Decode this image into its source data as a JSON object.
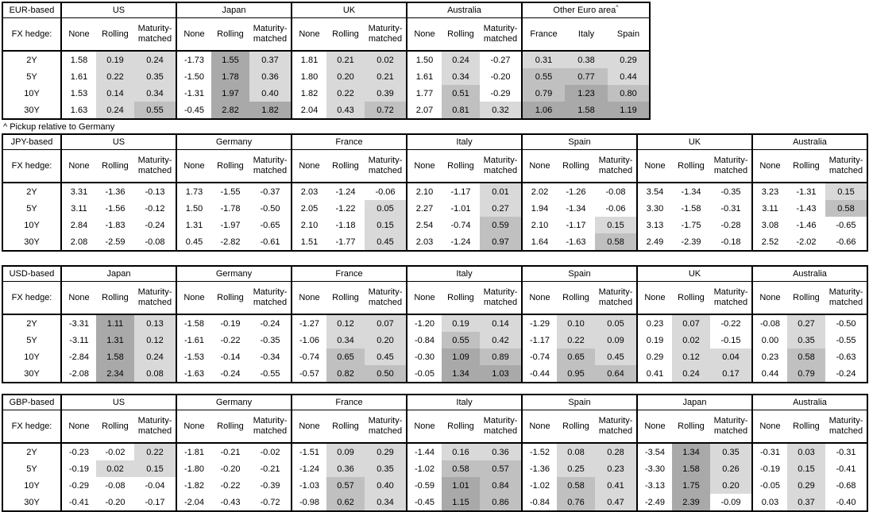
{
  "footnote": "^ Pickup relative to Germany",
  "row_header": "FX hedge:",
  "maturities": [
    "2Y",
    "5Y",
    "10Y",
    "30Y"
  ],
  "hedge_columns": [
    "None",
    "Rolling",
    "Maturity-matched"
  ],
  "shading_colors": {
    "none": "#ffffff",
    "light": "#d9d9d9",
    "medium": "#c0c0c0",
    "dark": "#a9a9a9"
  },
  "tables": [
    {
      "base": "EUR-based",
      "groups": [
        {
          "name": "US",
          "rows": [
            [
              "1.58",
              "0.19",
              "0.24"
            ],
            [
              "1.61",
              "0.22",
              "0.35"
            ],
            [
              "1.53",
              "0.14",
              "0.34"
            ],
            [
              "1.63",
              "0.24",
              "0.55"
            ]
          ]
        },
        {
          "name": "Japan",
          "rows": [
            [
              "-1.73",
              "1.55",
              "0.37"
            ],
            [
              "-1.50",
              "1.78",
              "0.36"
            ],
            [
              "-1.31",
              "1.97",
              "0.40"
            ],
            [
              "-0.45",
              "2.82",
              "1.82"
            ]
          ]
        },
        {
          "name": "UK",
          "rows": [
            [
              "1.81",
              "0.21",
              "0.02"
            ],
            [
              "1.80",
              "0.20",
              "0.21"
            ],
            [
              "1.82",
              "0.22",
              "0.39"
            ],
            [
              "2.04",
              "0.43",
              "0.72"
            ]
          ]
        },
        {
          "name": "Australia",
          "rows": [
            [
              "1.50",
              "0.24",
              "-0.27"
            ],
            [
              "1.61",
              "0.34",
              "-0.20"
            ],
            [
              "1.77",
              "0.51",
              "-0.29"
            ],
            [
              "2.07",
              "0.81",
              "0.32"
            ]
          ]
        },
        {
          "name": "Other Euro area",
          "sup": "^",
          "pickup": true,
          "columns": [
            "France",
            "Italy",
            "Spain"
          ],
          "rows": [
            [
              "0.31",
              "0.38",
              "0.29"
            ],
            [
              "0.55",
              "0.77",
              "0.44"
            ],
            [
              "0.79",
              "1.23",
              "0.80"
            ],
            [
              "1.06",
              "1.58",
              "1.19"
            ]
          ]
        }
      ]
    },
    {
      "base": "JPY-based",
      "groups": [
        {
          "name": "US",
          "rows": [
            [
              "3.31",
              "-1.36",
              "-0.13"
            ],
            [
              "3.11",
              "-1.56",
              "-0.12"
            ],
            [
              "2.84",
              "-1.83",
              "-0.24"
            ],
            [
              "2.08",
              "-2.59",
              "-0.08"
            ]
          ]
        },
        {
          "name": "Germany",
          "rows": [
            [
              "1.73",
              "-1.55",
              "-0.37"
            ],
            [
              "1.50",
              "-1.78",
              "-0.50"
            ],
            [
              "1.31",
              "-1.97",
              "-0.65"
            ],
            [
              "0.45",
              "-2.82",
              "-0.61"
            ]
          ]
        },
        {
          "name": "France",
          "rows": [
            [
              "2.03",
              "-1.24",
              "-0.06"
            ],
            [
              "2.05",
              "-1.22",
              "0.05"
            ],
            [
              "2.10",
              "-1.18",
              "0.15"
            ],
            [
              "1.51",
              "-1.77",
              "0.45"
            ]
          ]
        },
        {
          "name": "Italy",
          "rows": [
            [
              "2.10",
              "-1.17",
              "0.01"
            ],
            [
              "2.27",
              "-1.01",
              "0.27"
            ],
            [
              "2.54",
              "-0.74",
              "0.59"
            ],
            [
              "2.03",
              "-1.24",
              "0.97"
            ]
          ]
        },
        {
          "name": "Spain",
          "rows": [
            [
              "2.02",
              "-1.26",
              "-0.08"
            ],
            [
              "1.94",
              "-1.34",
              "-0.06"
            ],
            [
              "2.10",
              "-1.17",
              "0.15"
            ],
            [
              "1.64",
              "-1.63",
              "0.58"
            ]
          ]
        },
        {
          "name": "UK",
          "rows": [
            [
              "3.54",
              "-1.34",
              "-0.35"
            ],
            [
              "3.30",
              "-1.58",
              "-0.31"
            ],
            [
              "3.13",
              "-1.75",
              "-0.28"
            ],
            [
              "2.49",
              "-2.39",
              "-0.18"
            ]
          ]
        },
        {
          "name": "Australia",
          "rows": [
            [
              "3.23",
              "-1.31",
              "0.15"
            ],
            [
              "3.11",
              "-1.43",
              "0.58"
            ],
            [
              "3.08",
              "-1.46",
              "-0.65"
            ],
            [
              "2.52",
              "-2.02",
              "-0.66"
            ]
          ]
        }
      ]
    },
    {
      "base": "USD-based",
      "groups": [
        {
          "name": "Japan",
          "rows": [
            [
              "-3.31",
              "1.11",
              "0.13"
            ],
            [
              "-3.11",
              "1.31",
              "0.12"
            ],
            [
              "-2.84",
              "1.58",
              "0.24"
            ],
            [
              "-2.08",
              "2.34",
              "0.08"
            ]
          ]
        },
        {
          "name": "Germany",
          "rows": [
            [
              "-1.58",
              "-0.19",
              "-0.24"
            ],
            [
              "-1.61",
              "-0.22",
              "-0.35"
            ],
            [
              "-1.53",
              "-0.14",
              "-0.34"
            ],
            [
              "-1.63",
              "-0.24",
              "-0.55"
            ]
          ]
        },
        {
          "name": "France",
          "rows": [
            [
              "-1.27",
              "0.12",
              "0.07"
            ],
            [
              "-1.06",
              "0.34",
              "0.20"
            ],
            [
              "-0.74",
              "0.65",
              "0.45"
            ],
            [
              "-0.57",
              "0.82",
              "0.50"
            ]
          ]
        },
        {
          "name": "Italy",
          "rows": [
            [
              "-1.20",
              "0.19",
              "0.14"
            ],
            [
              "-0.84",
              "0.55",
              "0.42"
            ],
            [
              "-0.30",
              "1.09",
              "0.89"
            ],
            [
              "-0.05",
              "1.34",
              "1.03"
            ]
          ]
        },
        {
          "name": "Spain",
          "rows": [
            [
              "-1.29",
              "0.10",
              "0.05"
            ],
            [
              "-1.17",
              "0.22",
              "0.09"
            ],
            [
              "-0.74",
              "0.65",
              "0.45"
            ],
            [
              "-0.44",
              "0.95",
              "0.64"
            ]
          ]
        },
        {
          "name": "UK",
          "rows": [
            [
              "0.23",
              "0.07",
              "-0.22"
            ],
            [
              "0.19",
              "0.02",
              "-0.15"
            ],
            [
              "0.29",
              "0.12",
              "0.04"
            ],
            [
              "0.41",
              "0.24",
              "0.17"
            ]
          ]
        },
        {
          "name": "Australia",
          "rows": [
            [
              "-0.08",
              "0.27",
              "-0.50"
            ],
            [
              "0.00",
              "0.35",
              "-0.55"
            ],
            [
              "0.23",
              "0.58",
              "-0.63"
            ],
            [
              "0.44",
              "0.79",
              "-0.24"
            ]
          ]
        }
      ]
    },
    {
      "base": "GBP-based",
      "groups": [
        {
          "name": "US",
          "rows": [
            [
              "-0.23",
              "-0.02",
              "0.22"
            ],
            [
              "-0.19",
              "0.02",
              "0.15"
            ],
            [
              "-0.29",
              "-0.08",
              "-0.04"
            ],
            [
              "-0.41",
              "-0.20",
              "-0.17"
            ]
          ]
        },
        {
          "name": "Germany",
          "rows": [
            [
              "-1.81",
              "-0.21",
              "-0.02"
            ],
            [
              "-1.80",
              "-0.20",
              "-0.21"
            ],
            [
              "-1.82",
              "-0.22",
              "-0.39"
            ],
            [
              "-2.04",
              "-0.43",
              "-0.72"
            ]
          ]
        },
        {
          "name": "France",
          "rows": [
            [
              "-1.51",
              "0.09",
              "0.29"
            ],
            [
              "-1.24",
              "0.36",
              "0.35"
            ],
            [
              "-1.03",
              "0.57",
              "0.40"
            ],
            [
              "-0.98",
              "0.62",
              "0.34"
            ]
          ]
        },
        {
          "name": "Italy",
          "rows": [
            [
              "-1.44",
              "0.16",
              "0.36"
            ],
            [
              "-1.02",
              "0.58",
              "0.57"
            ],
            [
              "-0.59",
              "1.01",
              "0.84"
            ],
            [
              "-0.45",
              "1.15",
              "0.86"
            ]
          ]
        },
        {
          "name": "Spain",
          "rows": [
            [
              "-1.52",
              "0.08",
              "0.28"
            ],
            [
              "-1.36",
              "0.25",
              "0.23"
            ],
            [
              "-1.02",
              "0.58",
              "0.41"
            ],
            [
              "-0.84",
              "0.76",
              "0.47"
            ]
          ]
        },
        {
          "name": "Japan",
          "rows": [
            [
              "-3.54",
              "1.34",
              "0.35"
            ],
            [
              "-3.30",
              "1.58",
              "0.26"
            ],
            [
              "-3.13",
              "1.75",
              "0.20"
            ],
            [
              "-2.49",
              "2.39",
              "-0.09"
            ]
          ]
        },
        {
          "name": "Australia",
          "rows": [
            [
              "-0.31",
              "0.03",
              "-0.31"
            ],
            [
              "-0.19",
              "0.15",
              "-0.41"
            ],
            [
              "-0.05",
              "0.29",
              "-0.68"
            ],
            [
              "0.03",
              "0.37",
              "-0.40"
            ]
          ]
        }
      ]
    }
  ]
}
